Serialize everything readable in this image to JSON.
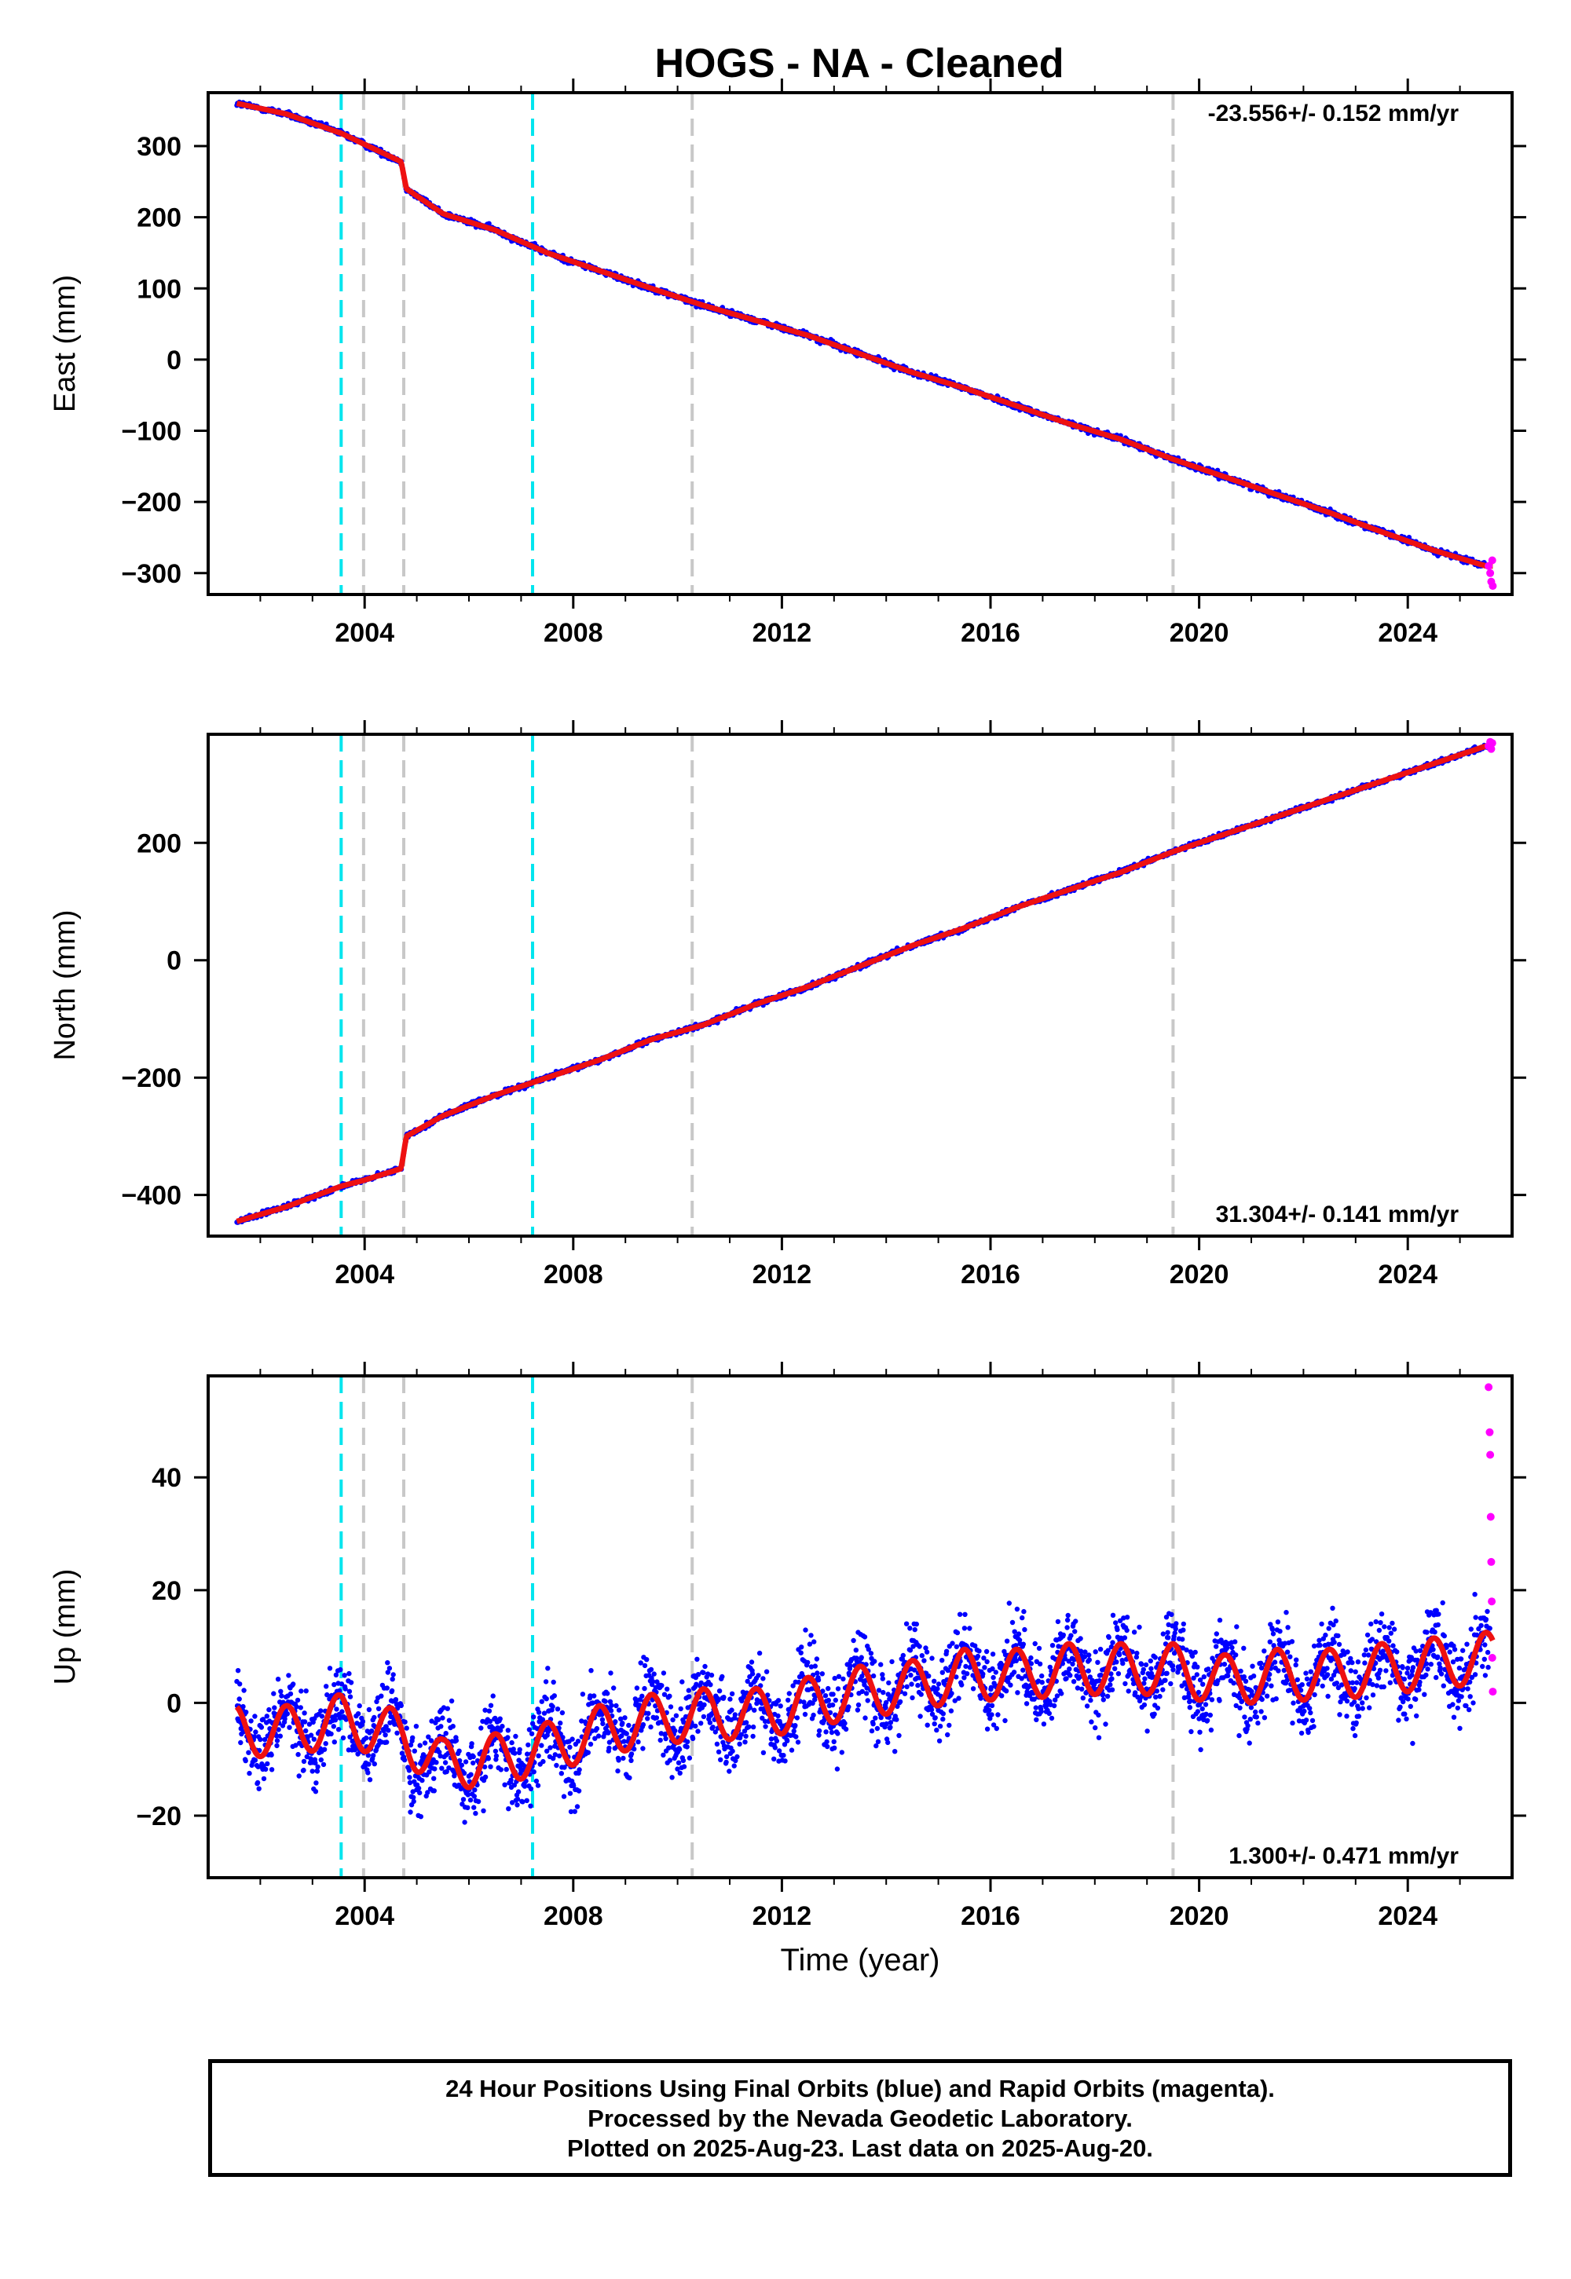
{
  "colors": {
    "final": "#0000ff",
    "rapid": "#ff00ff",
    "model": "#ee1111",
    "break_equipment": "#00e5ee",
    "break_other": "#c8c8c8"
  },
  "chart_data": [
    {
      "type": "scatter",
      "title": "HOGS  - NA - Cleaned",
      "ylabel": "East (mm)",
      "xlabel": "",
      "xlim": [
        2001.0,
        2026.0
      ],
      "ylim": [
        -330,
        375
      ],
      "xticks": [
        2004,
        2008,
        2012,
        2016,
        2020,
        2024
      ],
      "yticks": [
        -300,
        -200,
        -100,
        0,
        100,
        200,
        300
      ],
      "rate_label": "-23.556+/- 0.152 mm/yr",
      "rate_position": "top-right",
      "grid": false,
      "data_span": [
        2001.55,
        2025.63
      ],
      "breaks_cyan": [
        2003.55,
        2007.22
      ],
      "breaks_gray": [
        2003.98,
        2004.75,
        2010.28,
        2019.5
      ],
      "series": [
        {
          "name": "Final Orbits (blue)",
          "x": [
            2001.55,
            2002.5,
            2003.55,
            2004.7,
            2004.8,
            2005.5,
            2006.5,
            2007.5,
            2008.5,
            2009.5,
            2010.5,
            2011.5,
            2012.5,
            2013.5,
            2014.5,
            2015.5,
            2016.5,
            2017.5,
            2018.5,
            2019.5,
            2020.5,
            2021.5,
            2022.5,
            2023.5,
            2024.5,
            2025.5
          ],
          "y": [
            360,
            345,
            318,
            278,
            240,
            205,
            182,
            150,
            125,
            100,
            76,
            55,
            34,
            8,
            -18,
            -40,
            -65,
            -90,
            -112,
            -140,
            -165,
            -190,
            -215,
            -242,
            -268,
            -290
          ]
        },
        {
          "name": "Rapid Orbits (magenta)",
          "x": [
            2025.55,
            2025.58,
            2025.6,
            2025.62,
            2025.63
          ],
          "y": [
            -290,
            -300,
            -312,
            -282,
            -318
          ]
        }
      ]
    },
    {
      "type": "scatter",
      "title": "",
      "ylabel": "North (mm)",
      "xlabel": "",
      "xlim": [
        2001.0,
        2026.0
      ],
      "ylim": [
        -470,
        385
      ],
      "xticks": [
        2004,
        2008,
        2012,
        2016,
        2020,
        2024
      ],
      "yticks": [
        -400,
        -200,
        0,
        200
      ],
      "rate_label": "31.304+/- 0.141 mm/yr",
      "rate_position": "bottom-right",
      "grid": false,
      "data_span": [
        2001.55,
        2025.63
      ],
      "breaks_cyan": [
        2003.55,
        2007.22
      ],
      "breaks_gray": [
        2003.98,
        2004.75,
        2010.28,
        2019.5
      ],
      "series": [
        {
          "name": "Final Orbits (blue)",
          "x": [
            2001.55,
            2002.5,
            2003.55,
            2003.98,
            2004.7,
            2004.8,
            2005.5,
            2006.5,
            2007.5,
            2008.5,
            2009.5,
            2010.5,
            2011.5,
            2012.5,
            2013.5,
            2014.5,
            2015.5,
            2016.5,
            2017.5,
            2018.5,
            2019.5,
            2020.5,
            2021.5,
            2022.5,
            2023.5,
            2024.5,
            2025.5
          ],
          "y": [
            -445,
            -420,
            -385,
            -375,
            -355,
            -300,
            -265,
            -230,
            -200,
            -170,
            -135,
            -110,
            -75,
            -45,
            -10,
            25,
            55,
            90,
            120,
            150,
            185,
            215,
            245,
            275,
            305,
            335,
            365
          ]
        },
        {
          "name": "Rapid Orbits (magenta)",
          "x": [
            2025.55,
            2025.58,
            2025.6,
            2025.62
          ],
          "y": [
            365,
            372,
            360,
            370
          ]
        }
      ]
    },
    {
      "type": "scatter",
      "title": "",
      "ylabel": "Up (mm)",
      "xlabel": "Time (year)",
      "xlim": [
        2001.0,
        2026.0
      ],
      "ylim": [
        -31,
        58
      ],
      "xticks": [
        2004,
        2008,
        2012,
        2016,
        2020,
        2024
      ],
      "yticks": [
        -20,
        0,
        20,
        40
      ],
      "rate_label": "1.300+/- 0.471 mm/yr",
      "rate_position": "bottom-right",
      "grid": false,
      "data_span": [
        2001.55,
        2025.63
      ],
      "breaks_cyan": [
        2003.55,
        2007.22
      ],
      "breaks_gray": [
        2003.98,
        2004.75,
        2010.28,
        2019.5
      ],
      "series": [
        {
          "name": "Final Orbits (blue)",
          "x": [
            2001.55,
            2002.5,
            2003.55,
            2004.75,
            2005.5,
            2006.5,
            2007.5,
            2008.5,
            2009.5,
            2010.5,
            2011.5,
            2012.5,
            2013.5,
            2014.5,
            2015.5,
            2016.5,
            2017.5,
            2018.5,
            2019.5,
            2020.5,
            2021.5,
            2022.5,
            2023.5,
            2024.5,
            2025.5
          ],
          "y": [
            -5,
            -5,
            -3,
            -6,
            -11,
            -10,
            -8,
            -5,
            -3,
            -2,
            -2,
            0,
            2,
            3,
            5,
            5,
            6,
            6,
            6,
            4,
            5,
            5,
            6,
            7,
            8
          ]
        },
        {
          "name": "Rapid Orbits (magenta)",
          "x": [
            2025.55,
            2025.57,
            2025.58,
            2025.59,
            2025.6,
            2025.61,
            2025.62,
            2025.63
          ],
          "y": [
            56,
            48,
            44,
            33,
            25,
            18,
            8,
            2
          ]
        }
      ]
    }
  ],
  "caption": {
    "line1": "24 Hour Positions Using Final Orbits (blue) and Rapid Orbits (magenta).",
    "line2": "Processed by the Nevada Geodetic Laboratory.",
    "line3": "Plotted on 2025-Aug-23. Last data on 2025-Aug-20."
  }
}
